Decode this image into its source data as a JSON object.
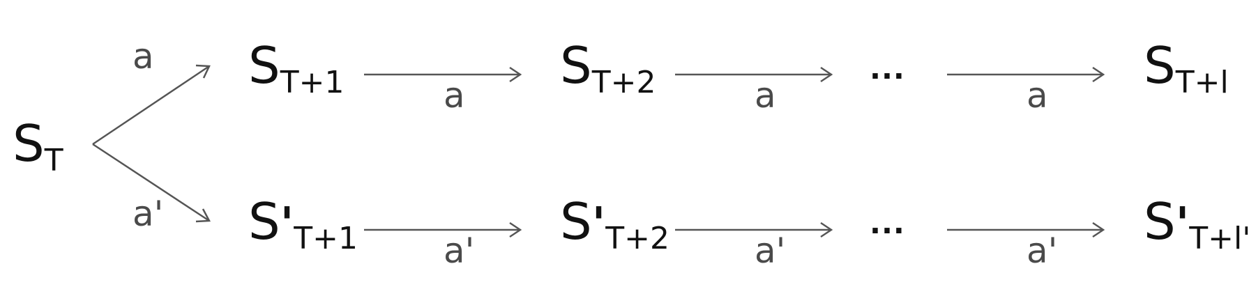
{
  "nodes": {
    "s_t": {
      "base": "S",
      "prime": "",
      "sub": "T"
    },
    "top": [
      {
        "base": "S",
        "prime": "",
        "sub": "T+1"
      },
      {
        "base": "S",
        "prime": "",
        "sub": "T+2"
      },
      {
        "base": "S",
        "prime": "",
        "sub": "T+l"
      }
    ],
    "bottom": [
      {
        "base": "S",
        "prime": "'",
        "sub": "T+1"
      },
      {
        "base": "S",
        "prime": "'",
        "sub": "T+2"
      },
      {
        "base": "S",
        "prime": "'",
        "sub": "T+l'"
      }
    ]
  },
  "ellipsis": "...",
  "edge_labels": {
    "branch_top": "a",
    "branch_bottom": "a'",
    "top_edges": [
      "a",
      "a",
      "a"
    ],
    "bottom_edges": [
      "a'",
      "a'",
      "a'"
    ]
  }
}
